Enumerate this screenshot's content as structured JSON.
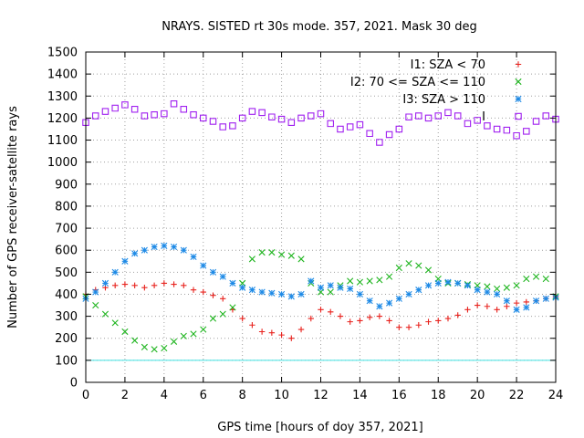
{
  "chart_data": {
    "type": "scatter",
    "title": "NRAYS. SISTED rt 30s mode. 357, 2021. Mask 30 deg",
    "xlabel": "GPS time [hours of doy 357, 2021]",
    "ylabel": "Number of GPS receiver-satellite rays",
    "xlim": [
      0,
      24
    ],
    "ylim": [
      0,
      1500
    ],
    "xticks": [
      "0",
      "2",
      "4",
      "6",
      "8",
      "10",
      "12",
      "14",
      "16",
      "18",
      "20",
      "22",
      "24"
    ],
    "yticks": [
      "0",
      "100",
      "200",
      "300",
      "400",
      "500",
      "600",
      "700",
      "800",
      "900",
      "1000",
      "1100",
      "1200",
      "1300",
      "1400",
      "1500"
    ],
    "grid": true,
    "legend_position": "top-right",
    "reference_line": {
      "y": 100,
      "color": "#40e0e0"
    },
    "series": [
      {
        "name": "I1: SZA < 70",
        "marker": "+",
        "color": "#e8231e",
        "x": [
          0,
          0.5,
          1,
          1.5,
          2,
          2.5,
          3,
          3.5,
          4,
          4.5,
          5,
          5.5,
          6,
          6.5,
          7,
          7.5,
          8,
          8.5,
          9,
          9.5,
          10,
          10.5,
          11,
          11.5,
          12,
          12.5,
          13,
          13.5,
          14,
          14.5,
          15,
          15.5,
          16,
          16.5,
          17,
          17.5,
          18,
          18.5,
          19,
          19.5,
          20,
          20.5,
          21,
          21.5,
          22,
          22.5,
          23,
          23.5,
          24
        ],
        "values": [
          400,
          420,
          430,
          440,
          445,
          440,
          430,
          440,
          450,
          445,
          440,
          420,
          410,
          395,
          380,
          330,
          290,
          260,
          230,
          225,
          215,
          200,
          240,
          290,
          330,
          320,
          300,
          275,
          280,
          295,
          300,
          280,
          250,
          250,
          260,
          275,
          280,
          290,
          305,
          330,
          350,
          345,
          330,
          345,
          360,
          365,
          370,
          380,
          390
        ]
      },
      {
        "name": "I2: 70 <= SZA <= 110",
        "marker": "x",
        "color": "#1fb51f",
        "x": [
          0,
          0.5,
          1,
          1.5,
          2,
          2.5,
          3,
          3.5,
          4,
          4.5,
          5,
          5.5,
          6,
          6.5,
          7,
          7.5,
          8,
          8.5,
          9,
          9.5,
          10,
          10.5,
          11,
          11.5,
          12,
          12.5,
          13,
          13.5,
          14,
          14.5,
          15,
          15.5,
          16,
          16.5,
          17,
          17.5,
          18,
          18.5,
          19,
          19.5,
          20,
          20.5,
          21,
          21.5,
          22,
          22.5,
          23,
          23.5,
          24
        ],
        "values": [
          390,
          350,
          310,
          270,
          230,
          190,
          160,
          150,
          155,
          185,
          210,
          220,
          240,
          290,
          310,
          340,
          450,
          560,
          590,
          590,
          580,
          575,
          560,
          450,
          410,
          410,
          440,
          460,
          455,
          460,
          465,
          480,
          520,
          540,
          530,
          510,
          470,
          450,
          450,
          445,
          440,
          435,
          425,
          430,
          440,
          470,
          480,
          470,
          390
        ]
      },
      {
        "name": "I3: SZA > 110",
        "marker": "*",
        "color": "#1e8ae6",
        "x": [
          0,
          0.5,
          1,
          1.5,
          2,
          2.5,
          3,
          3.5,
          4,
          4.5,
          5,
          5.5,
          6,
          6.5,
          7,
          7.5,
          8,
          8.5,
          9,
          9.5,
          10,
          10.5,
          11,
          11.5,
          12,
          12.5,
          13,
          13.5,
          14,
          14.5,
          15,
          15.5,
          16,
          16.5,
          17,
          17.5,
          18,
          18.5,
          19,
          19.5,
          20,
          20.5,
          21,
          21.5,
          22,
          22.5,
          23,
          23.5,
          24
        ],
        "values": [
          380,
          410,
          450,
          500,
          550,
          585,
          600,
          615,
          620,
          615,
          600,
          570,
          530,
          500,
          480,
          450,
          430,
          420,
          410,
          405,
          400,
          390,
          400,
          460,
          430,
          440,
          430,
          425,
          400,
          370,
          345,
          360,
          380,
          400,
          420,
          440,
          450,
          455,
          450,
          440,
          420,
          410,
          400,
          370,
          330,
          340,
          370,
          380,
          385
        ]
      },
      {
        "name": "I",
        "marker": "square",
        "color": "#a020f0",
        "x": [
          0,
          0.5,
          1,
          1.5,
          2,
          2.5,
          3,
          3.5,
          4,
          4.5,
          5,
          5.5,
          6,
          6.5,
          7,
          7.5,
          8,
          8.5,
          9,
          9.5,
          10,
          10.5,
          11,
          11.5,
          12,
          12.5,
          13,
          13.5,
          14,
          14.5,
          15,
          15.5,
          16,
          16.5,
          17,
          17.5,
          18,
          18.5,
          19,
          19.5,
          20,
          20.5,
          21,
          21.5,
          22,
          22.5,
          23,
          23.5,
          24
        ],
        "values": [
          1180,
          1210,
          1230,
          1245,
          1260,
          1240,
          1210,
          1215,
          1220,
          1265,
          1240,
          1215,
          1200,
          1185,
          1160,
          1165,
          1200,
          1230,
          1225,
          1205,
          1195,
          1180,
          1200,
          1210,
          1220,
          1175,
          1150,
          1160,
          1170,
          1130,
          1090,
          1125,
          1150,
          1205,
          1210,
          1200,
          1210,
          1225,
          1210,
          1175,
          1190,
          1165,
          1150,
          1145,
          1120,
          1140,
          1185,
          1210,
          1195
        ]
      }
    ]
  }
}
